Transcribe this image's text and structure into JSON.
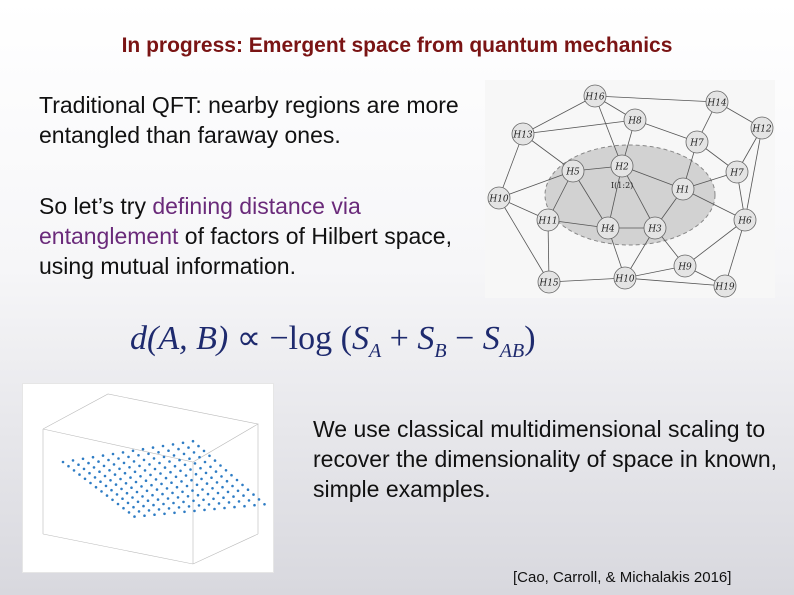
{
  "title": "In progress: Emergent space from quantum mechanics",
  "para1": "Traditional QFT: nearby regions are more entangled than faraway ones.",
  "para2": {
    "pre": "So let’s try ",
    "highlight": "defining distance via entanglement",
    "post": " of factors of Hilbert space, using mutual information."
  },
  "formula": {
    "lhs": "d(A, B)",
    "relation": "∝",
    "neg": "−",
    "func": "log",
    "terms": [
      "S",
      "A",
      "+",
      "S",
      "B",
      "−",
      "S",
      "AB"
    ]
  },
  "graph": {
    "node_labels": [
      "H16",
      "H14",
      "H12",
      "H13",
      "H8",
      "H7",
      "H7",
      "H5",
      "H2",
      "H1",
      "H10",
      "H11",
      "H4",
      "H3",
      "H6",
      "H9",
      "H15",
      "H10",
      "H19"
    ],
    "edge_label": "I(1:2)"
  },
  "para3": "We use classical multidimensional scaling to recover the dimensionality of space in known, simple examples.",
  "citation": "[Cao, Carroll, & Michalakis 2016]",
  "colors": {
    "title": "#7a1414",
    "highlight": "#6a2a7a",
    "formula": "#1e2a6e"
  }
}
